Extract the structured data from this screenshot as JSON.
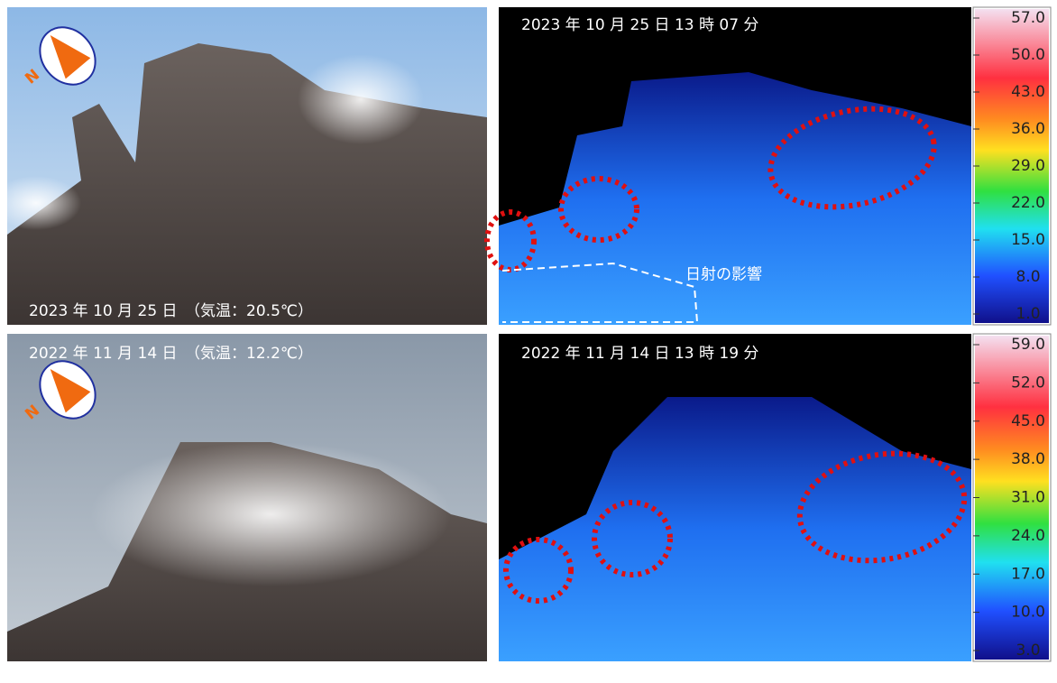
{
  "photos": [
    {
      "caption": "2023 年 10 月 25 日　（気温：20.5℃）",
      "north_label": "N"
    },
    {
      "caption": "2022 年 11 月 14 日　（気温：12.2℃）",
      "north_label": "N"
    }
  ],
  "thermal": [
    {
      "timestamp": "2023 年 10 月 25 日 13 時 07 分",
      "annotation": "日射の影響",
      "scale": [
        "57.0",
        "50.0",
        "43.0",
        "36.0",
        "29.0",
        "22.0",
        "15.0",
        "8.0",
        "1.0"
      ]
    },
    {
      "timestamp": "2022 年 11 月 14 日 13 時 19 分",
      "scale": [
        "59.0",
        "52.0",
        "45.0",
        "38.0",
        "31.0",
        "24.0",
        "17.0",
        "10.0",
        "3.0"
      ]
    }
  ]
}
